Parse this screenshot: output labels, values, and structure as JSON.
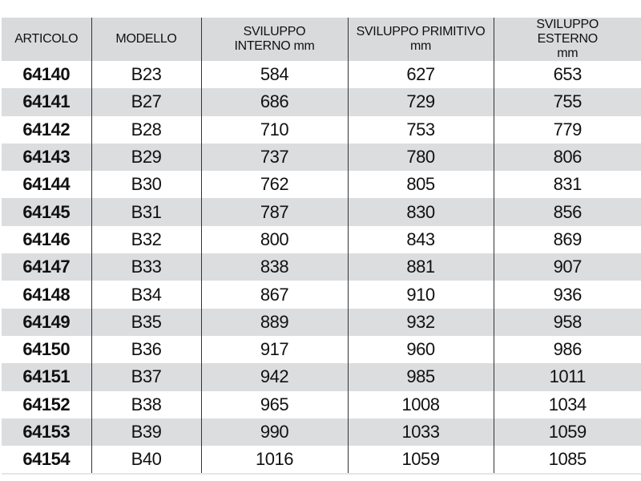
{
  "table": {
    "headers": [
      "ARTICOLO",
      "MODELLO",
      "SVILUPPO INTERNO mm",
      "SVILUPPO PRIMITIVO mm",
      "SVILUPPO ESTERNO mm"
    ],
    "rows": [
      [
        "64140",
        "B23",
        "584",
        "627",
        "653"
      ],
      [
        "64141",
        "B27",
        "686",
        "729",
        "755"
      ],
      [
        "64142",
        "B28",
        "710",
        "753",
        "779"
      ],
      [
        "64143",
        "B29",
        "737",
        "780",
        "806"
      ],
      [
        "64144",
        "B30",
        "762",
        "805",
        "831"
      ],
      [
        "64145",
        "B31",
        "787",
        "830",
        "856"
      ],
      [
        "64146",
        "B32",
        "800",
        "843",
        "869"
      ],
      [
        "64147",
        "B33",
        "838",
        "881",
        "907"
      ],
      [
        "64148",
        "B34",
        "867",
        "910",
        "936"
      ],
      [
        "64149",
        "B35",
        "889",
        "932",
        "958"
      ],
      [
        "64150",
        "B36",
        "917",
        "960",
        "986"
      ],
      [
        "64151",
        "B37",
        "942",
        "985",
        "1011"
      ],
      [
        "64152",
        "B38",
        "965",
        "1008",
        "1034"
      ],
      [
        "64153",
        "B39",
        "990",
        "1033",
        "1059"
      ],
      [
        "64154",
        "B40",
        "1016",
        "1059",
        "1085"
      ]
    ]
  },
  "colors": {
    "header_bg": "#d9dadb",
    "alt_row_bg": "#dcdddf"
  }
}
